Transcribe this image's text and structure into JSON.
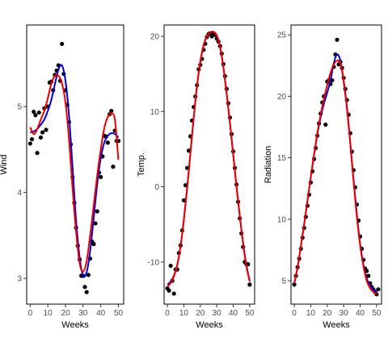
{
  "chart_data": [
    {
      "type": "scatter",
      "xlabel": "Weeks",
      "ylabel": "Wind",
      "xlim": [
        -2,
        53
      ],
      "ylim": [
        2.7,
        5.95
      ],
      "xticks": [
        0,
        10,
        20,
        30,
        40,
        50
      ],
      "yticks": [
        3,
        4,
        5
      ],
      "points": {
        "x": [
          0,
          1,
          2,
          3,
          4,
          5,
          6,
          7,
          8,
          9,
          10,
          11,
          12,
          13,
          14,
          15,
          16,
          17,
          18,
          19,
          20,
          21,
          22,
          23,
          24,
          25,
          26,
          27,
          28,
          29,
          30,
          31,
          32,
          33,
          34,
          35,
          36,
          37,
          38,
          39,
          40,
          41,
          42,
          43,
          44,
          45,
          46,
          47,
          48,
          49,
          50
        ],
        "y": [
          4.57,
          4.62,
          4.94,
          4.9,
          4.46,
          4.93,
          4.64,
          4.7,
          4.98,
          4.73,
          5.0,
          5.28,
          5.29,
          5.19,
          5.37,
          5.42,
          5.48,
          5.3,
          5.73,
          5.38,
          5.19,
          5.02,
          4.82,
          4.56,
          4.18,
          3.88,
          3.59,
          3.38,
          3.22,
          3.03,
          3.03,
          2.9,
          2.84,
          3.04,
          3.23,
          3.43,
          3.4,
          3.64,
          3.78,
          4.23,
          4.18,
          4.42,
          4.66,
          4.65,
          4.58,
          4.91,
          4.95,
          4.3,
          4.72,
          4.6,
          4.6
        ]
      },
      "series": [
        {
          "color": "#0000cc",
          "x": [
            0,
            2,
            4,
            6,
            8,
            10,
            12,
            14,
            16,
            18,
            20,
            22,
            24,
            26,
            28,
            30,
            32,
            34,
            36,
            38,
            40,
            42,
            44,
            46,
            48,
            50
          ],
          "y": [
            4.7,
            4.71,
            4.74,
            4.79,
            4.85,
            4.95,
            5.08,
            5.26,
            5.43,
            5.48,
            5.3,
            4.9,
            4.3,
            3.68,
            3.25,
            3.03,
            3.07,
            3.32,
            3.7,
            4.1,
            4.4,
            4.58,
            4.66,
            4.69,
            4.68,
            4.64
          ]
        },
        {
          "color": "#ee0000",
          "x": [
            0,
            2,
            4,
            6,
            8,
            10,
            12,
            14,
            16,
            18,
            20,
            22,
            24,
            26,
            28,
            30,
            32,
            34,
            36,
            38,
            40,
            42,
            44,
            46,
            48,
            50
          ],
          "y": [
            4.76,
            4.68,
            4.74,
            4.85,
            4.95,
            5.1,
            5.27,
            5.36,
            5.36,
            5.27,
            5.05,
            4.62,
            4.05,
            3.55,
            3.18,
            3.08,
            3.2,
            3.5,
            3.85,
            4.2,
            4.5,
            4.75,
            4.88,
            4.92,
            4.85,
            4.38
          ]
        }
      ]
    },
    {
      "type": "scatter",
      "xlabel": "Weeks",
      "ylabel": "Temp.",
      "xlim": [
        -2,
        53
      ],
      "ylim": [
        -15.6,
        21.5
      ],
      "xticks": [
        0,
        10,
        20,
        30,
        40,
        50
      ],
      "yticks": [
        -10,
        0,
        10,
        20
      ],
      "points": {
        "x": [
          0,
          1,
          2,
          3,
          4,
          5,
          6,
          7,
          8,
          9,
          10,
          11,
          12,
          13,
          14,
          15,
          16,
          17,
          18,
          19,
          20,
          21,
          22,
          23,
          24,
          25,
          26,
          27,
          28,
          29,
          30,
          31,
          32,
          33,
          34,
          35,
          36,
          37,
          38,
          39,
          40,
          41,
          42,
          43,
          44,
          45,
          46,
          47,
          48,
          49,
          50
        ],
        "y": [
          -13.5,
          -13.8,
          -10.5,
          -12.5,
          -14.2,
          -11.0,
          -11.0,
          -8.8,
          -7.8,
          -5.8,
          -1.8,
          0.2,
          2.5,
          4.8,
          6.7,
          8.8,
          10.6,
          12.0,
          13.5,
          15.6,
          16.2,
          17.0,
          18.2,
          19.0,
          19.9,
          20.3,
          20.4,
          20.0,
          20.4,
          20.2,
          19.7,
          19.3,
          18.7,
          17.7,
          16.3,
          14.7,
          13.0,
          11.1,
          9.2,
          7.0,
          4.7,
          2.5,
          0.3,
          -2.0,
          -4.2,
          -6.2,
          -8.0,
          -10.0,
          -10.3,
          -10.3,
          -13.0
        ]
      },
      "series": [
        {
          "color": "#0000cc",
          "x": [
            0,
            2,
            4,
            6,
            8,
            10,
            12,
            14,
            16,
            18,
            20,
            22,
            24,
            26,
            28,
            30,
            32,
            34,
            36,
            38,
            40,
            42,
            44,
            46,
            48,
            50
          ],
          "y": [
            -13.0,
            -12.6,
            -11.8,
            -10.4,
            -7.9,
            -4.4,
            -0.2,
            4.5,
            9.2,
            13.4,
            16.6,
            18.8,
            20.0,
            20.5,
            20.6,
            20.1,
            18.6,
            15.9,
            12.4,
            8.5,
            4.3,
            0.0,
            -3.9,
            -7.5,
            -10.4,
            -12.5
          ]
        },
        {
          "color": "#ee0000",
          "x": [
            0,
            2,
            4,
            6,
            8,
            10,
            12,
            14,
            16,
            18,
            20,
            22,
            24,
            26,
            28,
            30,
            32,
            34,
            36,
            38,
            40,
            42,
            44,
            46,
            48,
            50
          ],
          "y": [
            -13.3,
            -12.8,
            -11.9,
            -10.4,
            -7.9,
            -4.4,
            -0.2,
            4.5,
            9.2,
            13.4,
            16.6,
            18.8,
            20.0,
            20.5,
            20.6,
            20.1,
            18.6,
            15.9,
            12.4,
            8.5,
            4.3,
            0.0,
            -3.9,
            -7.6,
            -10.6,
            -12.6
          ]
        }
      ]
    },
    {
      "type": "scatter",
      "xlabel": "Weeks",
      "ylabel": "Radiation",
      "xlim": [
        -2,
        53
      ],
      "ylim": [
        3.1,
        25.8
      ],
      "xticks": [
        0,
        10,
        20,
        30,
        40,
        50
      ],
      "yticks": [
        5,
        10,
        15,
        20,
        25
      ],
      "points": {
        "x": [
          0,
          1,
          2,
          3,
          4,
          5,
          6,
          7,
          8,
          9,
          10,
          11,
          12,
          13,
          14,
          15,
          16,
          17,
          18,
          19,
          20,
          21,
          22,
          23,
          24,
          25,
          26,
          27,
          28,
          29,
          30,
          31,
          32,
          33,
          34,
          35,
          36,
          37,
          38,
          39,
          40,
          41,
          42,
          43,
          44,
          45,
          46,
          47,
          48,
          49,
          50,
          51
        ],
        "y": [
          4.7,
          5.4,
          6.1,
          6.8,
          7.6,
          8.5,
          9.3,
          10.2,
          11.1,
          12.0,
          13.0,
          13.9,
          14.9,
          15.8,
          16.8,
          17.8,
          18.6,
          19.5,
          20.0,
          17.7,
          21.2,
          21.3,
          21.0,
          21.3,
          22.4,
          23.4,
          24.6,
          22.6,
          22.8,
          22.3,
          21.5,
          20.6,
          19.7,
          18.5,
          17.0,
          15.5,
          14.0,
          12.6,
          11.2,
          9.9,
          8.6,
          7.6,
          6.7,
          6.0,
          5.8,
          5.4,
          4.8,
          4.5,
          4.3,
          4.1,
          3.9,
          4.3
        ]
      },
      "series": [
        {
          "color": "#0000cc",
          "x": [
            0,
            2,
            4,
            6,
            8,
            10,
            12,
            14,
            16,
            18,
            20,
            22,
            24,
            26,
            28,
            30,
            32,
            34,
            36,
            38,
            40,
            42,
            44,
            46,
            48,
            50
          ],
          "y": [
            4.8,
            6.1,
            7.8,
            9.6,
            11.5,
            13.4,
            15.2,
            16.9,
            18.3,
            19.4,
            20.3,
            21.3,
            22.7,
            23.4,
            22.9,
            21.2,
            19.0,
            16.2,
            13.2,
            10.4,
            8.0,
            6.3,
            5.2,
            4.6,
            4.3,
            4.1
          ]
        },
        {
          "color": "#ee0000",
          "x": [
            0,
            2,
            4,
            6,
            8,
            10,
            12,
            14,
            16,
            18,
            20,
            22,
            24,
            26,
            28,
            30,
            32,
            34,
            36,
            38,
            40,
            42,
            44,
            46,
            48,
            50
          ],
          "y": [
            4.8,
            6.1,
            7.8,
            9.6,
            11.5,
            13.4,
            15.3,
            17.0,
            18.5,
            19.8,
            20.9,
            21.9,
            22.6,
            22.9,
            22.7,
            21.3,
            19.1,
            16.2,
            13.1,
            10.2,
            7.9,
            6.2,
            5.0,
            4.4,
            4.1,
            3.9
          ]
        }
      ]
    }
  ]
}
